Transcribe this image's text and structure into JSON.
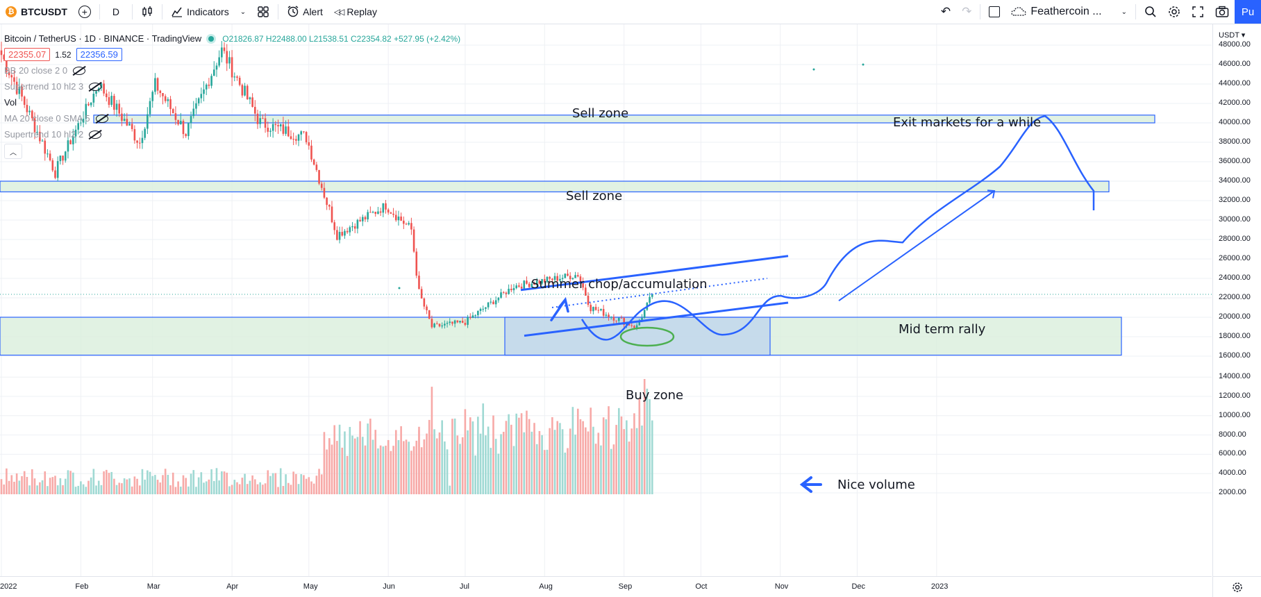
{
  "toolbar": {
    "symbol": "BTCUSDT",
    "symbol_logo": "₿",
    "interval": "D",
    "indicators_label": "Indicators",
    "alert_label": "Alert",
    "replay_label": "Replay",
    "layout_name": "Feathercoin ...",
    "publish_label": "Pu",
    "icons": [
      "add-symbol-icon",
      "candles-icon",
      "indicators-icon",
      "templates-icon",
      "alert-icon",
      "replay-icon",
      "undo-icon",
      "redo-icon",
      "rectangle-icon",
      "cloud-icon",
      "search-icon",
      "settings-icon",
      "fullscreen-icon",
      "camera-icon"
    ]
  },
  "legend": {
    "title": "Bitcoin / TetherUS · 1D · BINANCE · TradingView",
    "ohlc": "O21826.87 H22488.00 L21538.51 C22354.82 +527.95 (+2.42%)",
    "bid": "22355.07",
    "spread": "1.52",
    "ask": "22356.59",
    "indicators": [
      {
        "label": "BB 20 close 2 0",
        "hidden": true
      },
      {
        "label": "Supertrend 10 hl2 3",
        "hidden": true
      },
      {
        "label": "Vol",
        "hidden": false
      },
      {
        "label": "MA 20 close 0 SMA 5",
        "hidden": true
      },
      {
        "label": "Supertrend 10 hl2 2",
        "hidden": true
      }
    ]
  },
  "price_axis": {
    "currency": "USDT ▾",
    "ticks": [
      "48000.00",
      "46000.00",
      "44000.00",
      "42000.00",
      "40000.00",
      "38000.00",
      "36000.00",
      "34000.00",
      "32000.00",
      "30000.00",
      "28000.00",
      "26000.00",
      "24000.00",
      "22000.00",
      "20000.00",
      "18000.00",
      "16000.00",
      "14000.00",
      "12000.00",
      "10000.00",
      "8000.00",
      "6000.00",
      "4000.00",
      "2000.00"
    ]
  },
  "time_axis": {
    "ticks": [
      "2022",
      "Feb",
      "Mar",
      "Apr",
      "May",
      "Jun",
      "Jul",
      "Aug",
      "Sep",
      "Oct",
      "Nov",
      "Dec",
      "2023"
    ]
  },
  "annotations": {
    "sell_zone_1": "Sell zone",
    "sell_zone_2": "Sell zone",
    "exit": "Exit markets for a while",
    "summer": "Summer chop/accumulation",
    "mid_term": "Mid term rally",
    "buy_zone": "Buy zone",
    "volume": "Nice volume"
  },
  "colors": {
    "up": "#26a69a",
    "down": "#ef5350",
    "vol_up": "#9fd9d3",
    "vol_down": "#f7a9a7",
    "drawing": "#2962ff",
    "zone_fill": "#d9efdc"
  },
  "chart_data": {
    "type": "candlestick",
    "symbol": "BTCUSDT",
    "interval": "1D",
    "price_range": [
      15000,
      49000
    ],
    "volume_range": [
      2000,
      14000
    ],
    "anchors": [
      {
        "date": "2022-01-01",
        "close": 47000
      },
      {
        "date": "2022-01-10",
        "close": 42000
      },
      {
        "date": "2022-01-22",
        "close": 35000
      },
      {
        "date": "2022-02-08",
        "close": 44000
      },
      {
        "date": "2022-02-24",
        "close": 38000
      },
      {
        "date": "2022-03-02",
        "close": 44000
      },
      {
        "date": "2022-03-14",
        "close": 39000
      },
      {
        "date": "2022-03-28",
        "close": 47500
      },
      {
        "date": "2022-04-12",
        "close": 40000
      },
      {
        "date": "2022-04-30",
        "close": 38500
      },
      {
        "date": "2022-05-09",
        "close": 31000
      },
      {
        "date": "2022-05-12",
        "close": 28500
      },
      {
        "date": "2022-05-31",
        "close": 31500
      },
      {
        "date": "2022-06-10",
        "close": 29000
      },
      {
        "date": "2022-06-13",
        "close": 22500
      },
      {
        "date": "2022-06-18",
        "close": 19000
      },
      {
        "date": "2022-07-01",
        "close": 19500
      },
      {
        "date": "2022-07-20",
        "close": 23200
      },
      {
        "date": "2022-08-14",
        "close": 24400
      },
      {
        "date": "2022-08-19",
        "close": 21000
      },
      {
        "date": "2022-09-06",
        "close": 19000
      },
      {
        "date": "2022-09-12",
        "close": 22354.82
      }
    ],
    "volume_spikes": [
      {
        "date": "2022-05-09",
        "volume": 7500
      },
      {
        "date": "2022-06-13",
        "volume": 8500
      },
      {
        "date": "2022-06-18",
        "volume": 13000
      },
      {
        "date": "2022-09-07",
        "volume": 11800
      },
      {
        "date": "2022-09-09",
        "volume": 13800
      }
    ]
  }
}
